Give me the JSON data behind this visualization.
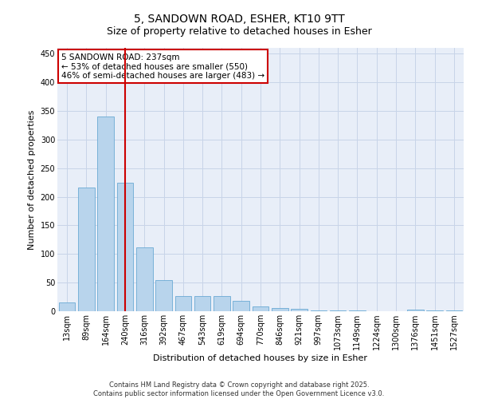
{
  "title": "5, SANDOWN ROAD, ESHER, KT10 9TT",
  "subtitle": "Size of property relative to detached houses in Esher",
  "xlabel": "Distribution of detached houses by size in Esher",
  "ylabel": "Number of detached properties",
  "categories": [
    "13sqm",
    "89sqm",
    "164sqm",
    "240sqm",
    "316sqm",
    "392sqm",
    "467sqm",
    "543sqm",
    "619sqm",
    "694sqm",
    "770sqm",
    "846sqm",
    "921sqm",
    "997sqm",
    "1073sqm",
    "1149sqm",
    "1224sqm",
    "1300sqm",
    "1376sqm",
    "1451sqm",
    "1527sqm"
  ],
  "values": [
    15,
    216,
    340,
    224,
    112,
    54,
    27,
    26,
    26,
    18,
    9,
    6,
    4,
    2,
    1,
    1,
    0,
    0,
    3,
    2,
    2
  ],
  "bar_color": "#b8d4ec",
  "bar_edge_color": "#6aaad4",
  "highlight_bar_index": 3,
  "highlight_line_color": "#cc0000",
  "annotation_text": "5 SANDOWN ROAD: 237sqm\n← 53% of detached houses are smaller (550)\n46% of semi-detached houses are larger (483) →",
  "annotation_box_color": "#cc0000",
  "ylim": [
    0,
    460
  ],
  "yticks": [
    0,
    50,
    100,
    150,
    200,
    250,
    300,
    350,
    400,
    450
  ],
  "grid_color": "#c8d4e8",
  "background_color": "#e8eef8",
  "footer_text": "Contains HM Land Registry data © Crown copyright and database right 2025.\nContains public sector information licensed under the Open Government Licence v3.0.",
  "title_fontsize": 10,
  "subtitle_fontsize": 9,
  "axis_label_fontsize": 8,
  "tick_fontsize": 7,
  "annotation_fontsize": 7.5,
  "footer_fontsize": 6
}
